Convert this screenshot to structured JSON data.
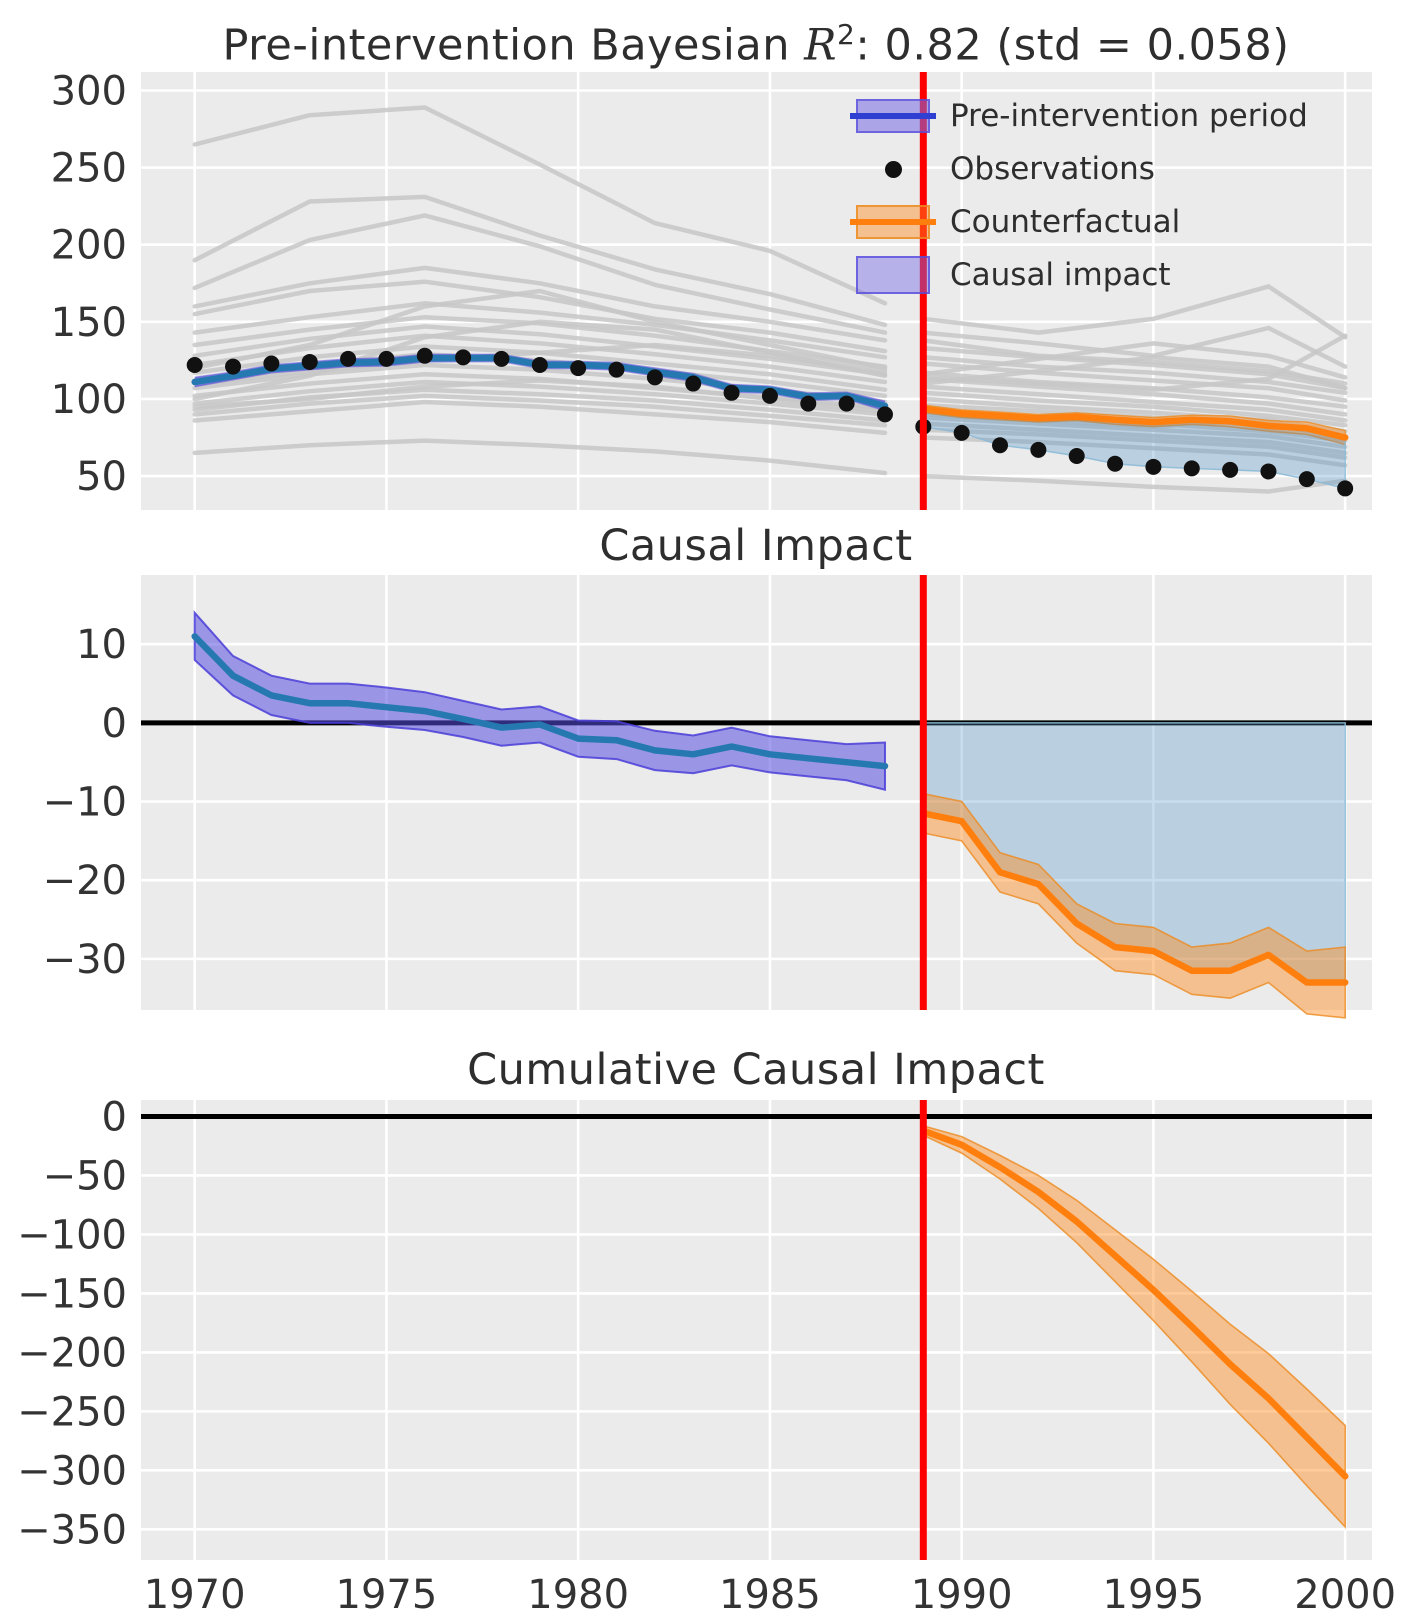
{
  "figure_type": "causal-impact-figure",
  "colors": {
    "axes_background": "#ebebeb",
    "grid": "#ffffff",
    "control_gray": "#c7c7c7",
    "synthetic_blue": "#2679b0",
    "legend_blue_line": "#2e3fd2",
    "pre_band_fill": "rgba(90,78,224,0.55)",
    "pre_band_edge": "rgba(74,62,216,0.85)",
    "counterfactual_orange": "#ff7f0e",
    "orange_band_fill": "rgba(255,140,30,0.45)",
    "orange_band_edge": "rgba(236,138,31,0.8)",
    "impact_fill": "rgba(74,144,196,0.30)",
    "impact_fill_edge": "rgba(140,186,215,0.9)",
    "observation_black": "#111111",
    "intervention_red": "#ff0000",
    "zero_line_black": "#000000",
    "tick_text": "#333333",
    "legend_patch_fill": "rgba(118,108,230,0.45)",
    "legend_patch_edge": "rgba(84,72,220,0.85)"
  },
  "chart_data": [
    {
      "type": "line",
      "panel": "pre-intervention-fit",
      "title": {
        "prefix": "Pre-intervention Bayesian ",
        "math": "R",
        "sup": "2",
        "suffix": ": 0.82 (std = 0.058)"
      },
      "xlabel": "",
      "ylabel": "",
      "xlim": [
        1968.6,
        2000.7
      ],
      "ylim": [
        28,
        312
      ],
      "x_tick_years": [
        1970,
        1975,
        1980,
        1985,
        1990,
        1995,
        2000
      ],
      "x_tick_labels": [
        "1970",
        "1975",
        "1980",
        "1985",
        "1990",
        "1995",
        "2000"
      ],
      "y_tick_values": [
        300,
        250,
        200,
        150,
        100,
        50
      ],
      "y_tick_labels": [
        "300",
        "250",
        "200",
        "150",
        "100",
        "50"
      ],
      "grid": true,
      "intervention_year": 1989,
      "years_pre": [
        1970,
        1971,
        1972,
        1973,
        1974,
        1975,
        1976,
        1977,
        1978,
        1979,
        1980,
        1981,
        1982,
        1983,
        1984,
        1985,
        1986,
        1987,
        1988
      ],
      "years_post": [
        1989,
        1990,
        1991,
        1992,
        1993,
        1994,
        1995,
        1996,
        1997,
        1998,
        1999,
        2000
      ],
      "observations_pre": [
        122,
        121,
        123,
        124,
        126,
        126,
        128,
        127,
        126,
        122,
        120,
        119,
        114,
        110,
        104,
        102,
        97,
        97,
        90
      ],
      "observations_post": [
        82,
        78,
        70,
        67,
        63,
        58,
        56,
        55,
        54,
        53,
        48,
        42
      ],
      "synthetic_control_pre": [
        111,
        115,
        119.5,
        121.5,
        123.5,
        124,
        126.5,
        126.5,
        126.6,
        122.2,
        122,
        121.2,
        117.5,
        114,
        107,
        106,
        101.5,
        102,
        95.5
      ],
      "synthetic_band_halfwidth_pre": [
        3,
        2.5,
        2.5,
        2.5,
        2.5,
        2.5,
        2.4,
        2.3,
        2.3,
        2.3,
        2.3,
        2.4,
        2.5,
        2.4,
        2.4,
        2.3,
        2.3,
        2.3,
        3
      ],
      "counterfactual_post": [
        93.5,
        90.5,
        89,
        87.5,
        88.5,
        86.5,
        85,
        86.5,
        85.5,
        82.5,
        81,
        75
      ],
      "counterfactual_band_halfwidth_post": [
        2.5,
        2.5,
        2.5,
        2.5,
        2.5,
        3,
        3,
        3,
        3.5,
        3.5,
        4,
        4.5
      ],
      "control_units": {
        "anchor_years_pre": [
          1970,
          1973,
          1976,
          1979,
          1982,
          1985,
          1988
        ],
        "anchor_years_post": [
          1989,
          1992,
          1995,
          1998,
          2000
        ],
        "series": [
          {
            "pre": [
              265,
              284,
              289,
              252,
              214,
              196,
              162
            ],
            "post": [
              152,
              143,
              152,
              173,
              140
            ]
          },
          {
            "pre": [
              190,
              228,
              231,
              206,
              184,
              168,
              148
            ],
            "post": [
              143,
              136,
              128,
              146,
              121
            ]
          },
          {
            "pre": [
              172,
              203,
              219,
              199,
              174,
              158,
              143
            ],
            "post": [
              138,
              128,
              124,
              118,
              110
            ]
          },
          {
            "pre": [
              155,
              170,
              176,
              166,
              152,
              143,
              131
            ],
            "post": [
              127,
              121,
              117,
              111,
              104
            ]
          },
          {
            "pre": [
              143,
              153,
              162,
              156,
              148,
              138,
              127
            ],
            "post": [
              123,
              117,
              112,
              107,
              99
            ]
          },
          {
            "pre": [
              135,
              145,
              153,
              149,
              141,
              131,
              121
            ],
            "post": [
              117,
              111,
              107,
              101,
              95
            ]
          },
          {
            "pre": [
              128,
              139,
              147,
              142,
              134,
              126,
              116
            ],
            "post": [
              113,
              108,
              103,
              97,
              90
            ]
          },
          {
            "pre": [
              122,
              133,
              141,
              136,
              129,
              121,
              111
            ],
            "post": [
              108,
              103,
              98,
              93,
              86
            ]
          },
          {
            "pre": [
              117,
              127,
              134,
              130,
              123,
              116,
              106
            ],
            "post": [
              104,
              99,
              95,
              89,
              83
            ]
          },
          {
            "pre": [
              112,
              122,
              129,
              125,
              118,
              111,
              102
            ],
            "post": [
              100,
              95,
              91,
              86,
              79
            ]
          },
          {
            "pre": [
              107,
              116,
              122,
              119,
              113,
              106,
              98
            ],
            "post": [
              96,
              92,
              88,
              83,
              76
            ]
          },
          {
            "pre": [
              102,
              110,
              116,
              113,
              107,
              101,
              94
            ],
            "post": [
              92,
              88,
              84,
              79,
              73
            ]
          },
          {
            "pre": [
              97,
              105,
              111,
              108,
              103,
              97,
              90
            ],
            "post": [
              88,
              84,
              80,
              76,
              69
            ]
          },
          {
            "pre": [
              93,
              101,
              106,
              103,
              99,
              93,
              86
            ],
            "post": [
              84,
              80,
              76,
              72,
              65
            ]
          },
          {
            "pre": [
              90,
              97,
              102,
              99,
              95,
              89,
              83
            ],
            "post": [
              80,
              77,
              73,
              69,
              62
            ]
          },
          {
            "pre": [
              65,
              70,
              73,
              70,
              66,
              60,
              52
            ],
            "post": [
              50,
              47,
              43,
              40,
              47
            ]
          },
          {
            "pre": [
              120,
              135,
              160,
              170,
              150,
              135,
              120
            ],
            "post": [
              116,
              126,
              136,
              128,
              114
            ]
          },
          {
            "pre": [
              100,
              115,
              140,
              150,
              145,
              130,
              115
            ],
            "post": [
              110,
              118,
              127,
              121,
              107
            ]
          },
          {
            "pre": [
              160,
              175,
              185,
              175,
              160,
              150,
              138
            ],
            "post": [
              133,
              127,
              122,
              116,
              107
            ]
          },
          {
            "pre": [
              110,
              118,
              125,
              130,
              135,
              128,
              118
            ],
            "post": [
              114,
              110,
              106,
              113,
              141
            ]
          },
          {
            "pre": [
              95,
              100,
              108,
              112,
              108,
              100,
              92
            ],
            "post": [
              90,
              86,
              82,
              87,
              74
            ]
          },
          {
            "pre": [
              86,
              92,
              98,
              95,
              90,
              85,
              78
            ],
            "post": [
              75,
              72,
              68,
              64,
              57
            ]
          }
        ]
      },
      "legend": {
        "position": "upper right",
        "items": [
          {
            "label": "Pre-intervention period",
            "key": "band-line-blue"
          },
          {
            "label": "Observations",
            "key": "black-dot"
          },
          {
            "label": "Counterfactual",
            "key": "band-line-orange"
          },
          {
            "label": "Causal impact",
            "key": "patch-periwinkle"
          }
        ]
      }
    },
    {
      "type": "line",
      "panel": "causal-impact",
      "title": "Causal Impact",
      "xlim": [
        1968.6,
        2000.7
      ],
      "ylim": [
        -36.5,
        18.8
      ],
      "y_tick_values": [
        10,
        0,
        -10,
        -20,
        -30
      ],
      "y_tick_labels": [
        "10",
        "0",
        "−10",
        "−20",
        "−30"
      ],
      "grid": true,
      "intervention_year": 1989,
      "zero_line": 0,
      "years_pre": [
        1970,
        1971,
        1972,
        1973,
        1974,
        1975,
        1976,
        1977,
        1978,
        1979,
        1980,
        1981,
        1982,
        1983,
        1984,
        1985,
        1986,
        1987,
        1988
      ],
      "impact_pre": [
        11,
        6,
        3.5,
        2.5,
        2.5,
        2,
        1.5,
        0.5,
        -0.6,
        -0.2,
        -2,
        -2.2,
        -3.5,
        -4,
        -3,
        -4,
        -4.5,
        -5,
        -5.5
      ],
      "impact_band_halfwidth_pre": [
        3,
        2.5,
        2.5,
        2.5,
        2.5,
        2.5,
        2.4,
        2.3,
        2.3,
        2.3,
        2.3,
        2.4,
        2.5,
        2.4,
        2.4,
        2.3,
        2.3,
        2.3,
        3
      ],
      "years_post": [
        1989,
        1990,
        1991,
        1992,
        1993,
        1994,
        1995,
        1996,
        1997,
        1998,
        1999,
        2000
      ],
      "impact_post": [
        -11.5,
        -12.5,
        -19,
        -20.5,
        -25.5,
        -28.5,
        -29,
        -31.5,
        -31.5,
        -29.5,
        -33,
        -33
      ],
      "impact_band_halfwidth_post": [
        2.5,
        2.5,
        2.5,
        2.5,
        2.5,
        3,
        3,
        3,
        3.5,
        3.5,
        4,
        4.5
      ],
      "shaded_region": "between zero line and posterior mean, post-intervention"
    },
    {
      "type": "line",
      "panel": "cumulative-causal-impact",
      "title": "Cumulative Causal Impact",
      "xlim": [
        1968.6,
        2000.7
      ],
      "ylim": [
        -376,
        14
      ],
      "y_tick_values": [
        0,
        -50,
        -100,
        -150,
        -200,
        -250,
        -300,
        -350
      ],
      "y_tick_labels": [
        "0",
        "−50",
        "−100",
        "−150",
        "−200",
        "−250",
        "−300",
        "−350"
      ],
      "grid": true,
      "intervention_year": 1989,
      "zero_line": 0,
      "years_post": [
        1989,
        1990,
        1991,
        1992,
        1993,
        1994,
        1995,
        1996,
        1997,
        1998,
        1999,
        2000
      ],
      "cumulative_impact": [
        -12,
        -24,
        -43,
        -64,
        -89,
        -118,
        -147,
        -178,
        -210,
        -239,
        -272,
        -305
      ],
      "cumulative_band_halfwidth": [
        4,
        7,
        10,
        14,
        18,
        22,
        26,
        30,
        34,
        38,
        41,
        43
      ]
    }
  ]
}
